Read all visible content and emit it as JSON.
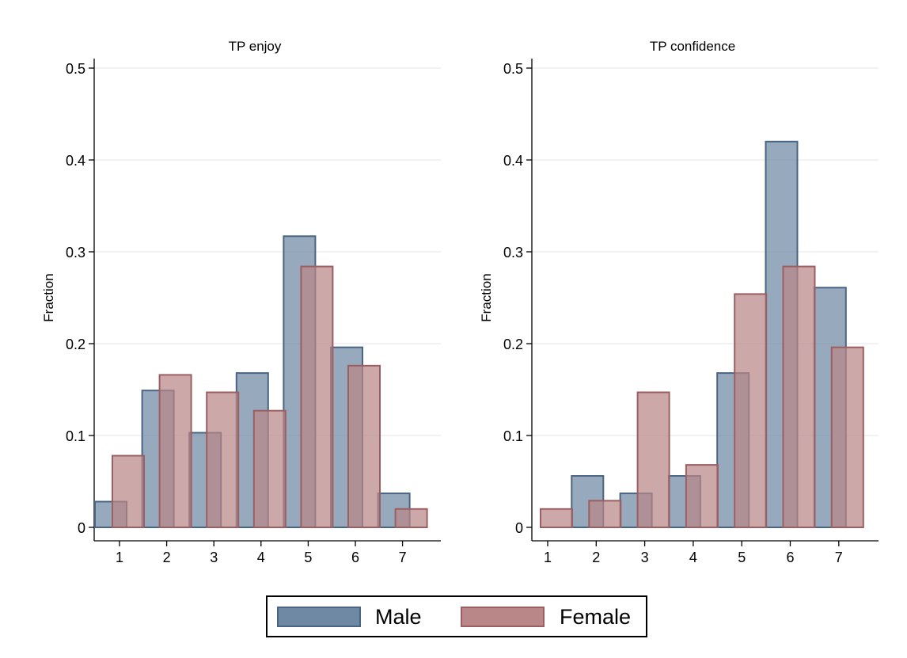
{
  "chart_data": [
    {
      "type": "bar",
      "title": "TP enjoy",
      "xlabel": "",
      "ylabel": "Fraction",
      "categories": [
        "1",
        "2",
        "3",
        "4",
        "5",
        "6",
        "7"
      ],
      "yticks": [
        "0",
        "0.1",
        "0.2",
        "0.3",
        "0.4",
        "0.5"
      ],
      "ylim": [
        0,
        0.5
      ],
      "grid": true,
      "series": [
        {
          "name": "Male",
          "values": [
            0.028,
            0.149,
            0.103,
            0.168,
            0.317,
            0.196,
            0.037
          ]
        },
        {
          "name": "Female",
          "values": [
            0.078,
            0.166,
            0.147,
            0.127,
            0.284,
            0.176,
            0.02
          ]
        }
      ]
    },
    {
      "type": "bar",
      "title": "TP confidence",
      "xlabel": "",
      "ylabel": "Fraction",
      "categories": [
        "1",
        "2",
        "3",
        "4",
        "5",
        "6",
        "7"
      ],
      "yticks": [
        "0",
        "0.1",
        "0.2",
        "0.3",
        "0.4",
        "0.5"
      ],
      "ylim": [
        0,
        0.5
      ],
      "grid": true,
      "series": [
        {
          "name": "Male",
          "values": [
            0.0,
            0.056,
            0.037,
            0.056,
            0.168,
            0.42,
            0.261
          ]
        },
        {
          "name": "Female",
          "values": [
            0.02,
            0.029,
            0.147,
            0.068,
            0.254,
            0.284,
            0.196
          ]
        }
      ]
    }
  ],
  "legend": {
    "placement": "bottom",
    "items": [
      {
        "label": "Male",
        "fill": "#6f88a3",
        "stroke": "#4a6583"
      },
      {
        "label": "Female",
        "fill": "#b98787",
        "stroke": "#9b5f62"
      }
    ]
  },
  "colors": {
    "male_fill": "#6f88a3",
    "male_stroke": "#4a6583",
    "female_fill": "#b98787",
    "female_stroke": "#9b5f62",
    "grid": "#e6ebf0"
  }
}
